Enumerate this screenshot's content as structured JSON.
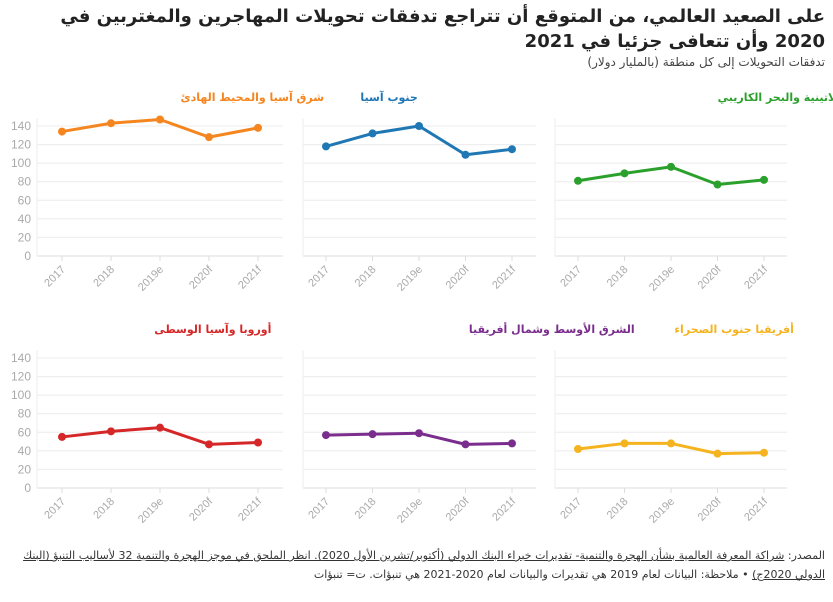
{
  "title": "على الصعيد العالمي، من المتوقع أن تتراجع تدفقات تحويلات المهاجرين والمغتربين في 2020 وأن تتعافى جزئيا في 2021",
  "subtitle": "تدفقات التحويلات إلى كل منطقة (بالمليار دولار)",
  "footer": {
    "source_label": "المصدر: ",
    "source_text": "شراكة المعرفة العالمية بشأن الهجرة والتنمية- تقديرات خبراء البنك الدولي (أكتوبر/تشرين الأول 2020). انظر الملحق في موجز الهجرة والتنمية 32 لأساليب التنبؤ (البنك الدولي 2020ج)",
    "note": " • ملاحظة: البيانات لعام 2019 هي تقديرات والبيانات لعام 2020-2021 هي تنبؤات. ت= تنبؤات"
  },
  "chart_data": {
    "type": "line",
    "title": "على الصعيد العالمي، من المتوقع أن تتراجع تدفقات تحويلات المهاجرين والمغتربين في 2020 وأن تتعافى جزئيا في 2021",
    "ylabel": "تدفقات التحويلات إلى كل منطقة (بالمليار دولار)",
    "categories": [
      "2017",
      "2018",
      "2019e",
      "2020f",
      "2021f"
    ],
    "ylim": [
      0,
      140
    ],
    "yticks": [
      0,
      20,
      40,
      60,
      80,
      100,
      120,
      140
    ],
    "grid": true,
    "series": [
      {
        "name": "شرق آسيا والمحيط الهادئ",
        "color": "#f5861f",
        "values": [
          134,
          143,
          147,
          128,
          138
        ]
      },
      {
        "name": "جنوب آسيا",
        "color": "#1f77b4",
        "values": [
          118,
          132,
          140,
          109,
          115
        ]
      },
      {
        "name": "أمريكا اللاتينية والبحر الكاريبي",
        "color": "#2ca02c",
        "values": [
          81,
          89,
          96,
          77,
          82
        ]
      },
      {
        "name": "أوروبا وآسيا الوسطى",
        "color": "#d62728",
        "values": [
          55,
          61,
          65,
          47,
          49
        ]
      },
      {
        "name": "الشرق الأوسط وشمال أفريقيا",
        "color": "#7b2d8e",
        "values": [
          57,
          58,
          59,
          47,
          48
        ]
      },
      {
        "name": "أفريقيا جنوب الصحراء",
        "color": "#f5b41f",
        "values": [
          42,
          48,
          48,
          37,
          38
        ]
      }
    ]
  }
}
